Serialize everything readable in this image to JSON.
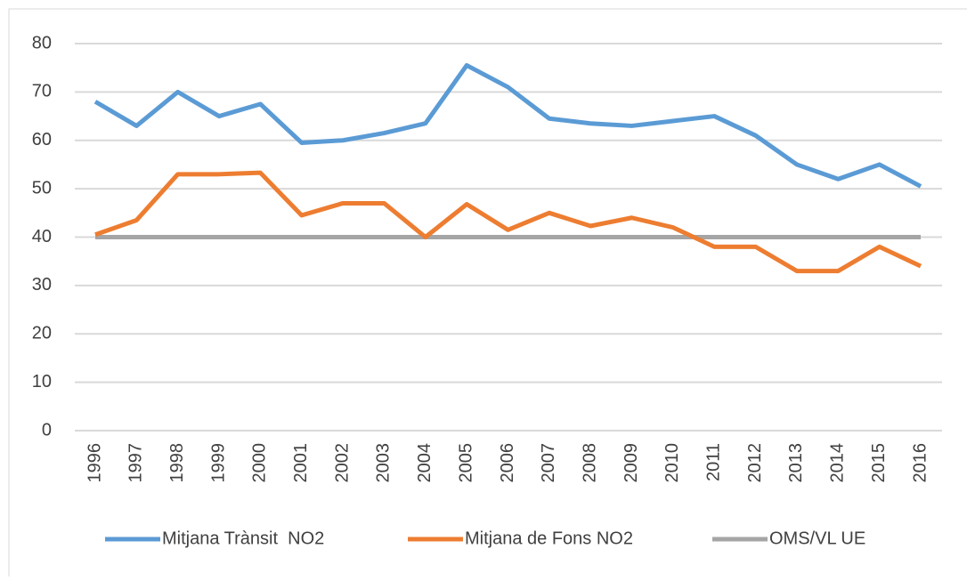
{
  "chart_data": {
    "type": "line",
    "categories": [
      "1996",
      "1997",
      "1998",
      "1999",
      "2000",
      "2001",
      "2002",
      "2003",
      "2004",
      "2005",
      "2006",
      "2007",
      "2008",
      "2009",
      "2010",
      "2011",
      "2012",
      "2013",
      "2014",
      "2015",
      "2016"
    ],
    "series": [
      {
        "name": "Mitjana Trànsit  NO2",
        "color": "#5b9bd5",
        "values": [
          68,
          63,
          70,
          65,
          67.5,
          59.5,
          60,
          61.5,
          63.5,
          75.5,
          71,
          64.5,
          63.5,
          63,
          64,
          65,
          61,
          55,
          52,
          55,
          50.5
        ]
      },
      {
        "name": "Mitjana de Fons NO2",
        "color": "#ed7d31",
        "values": [
          40.5,
          43.5,
          53,
          53,
          53.3,
          44.5,
          47,
          47,
          40,
          46.8,
          41.5,
          45,
          42.3,
          44,
          42,
          38,
          38,
          33,
          33,
          38,
          34
        ]
      },
      {
        "name": "OMS/VL UE",
        "color": "#a5a5a5",
        "values": [
          40,
          40,
          40,
          40,
          40,
          40,
          40,
          40,
          40,
          40,
          40,
          40,
          40,
          40,
          40,
          40,
          40,
          40,
          40,
          40,
          40
        ]
      }
    ],
    "ylim": [
      0,
      80
    ],
    "yticks": [
      0,
      10,
      20,
      30,
      40,
      50,
      60,
      70,
      80
    ],
    "grid": true,
    "legend": "bottom"
  }
}
